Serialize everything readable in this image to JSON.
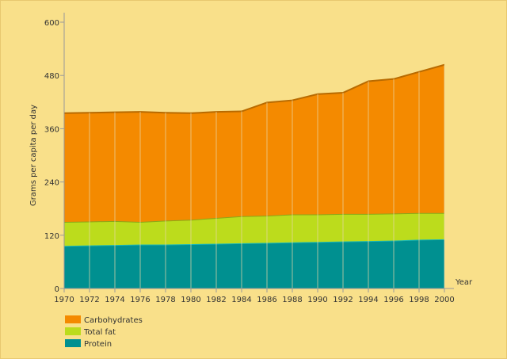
{
  "chart_data": {
    "type": "area",
    "stacked": true,
    "title": "",
    "xlabel": "Year",
    "ylabel": "Grams per capita per day",
    "ylim": [
      0,
      600
    ],
    "yticks": [
      0,
      120,
      240,
      360,
      480,
      600
    ],
    "x": [
      1970,
      1972,
      1974,
      1976,
      1978,
      1980,
      1982,
      1984,
      1986,
      1988,
      1990,
      1992,
      1994,
      1996,
      1998,
      2000
    ],
    "series": [
      {
        "name": "Protein",
        "color": "#009090",
        "values": [
          96,
          97,
          98,
          99,
          99,
          100,
          101,
          102,
          103,
          104,
          105,
          106,
          107,
          108,
          110,
          111
        ]
      },
      {
        "name": "Total fat",
        "color": "#bcdc1c",
        "values": [
          54,
          54,
          54,
          51,
          54,
          55,
          58,
          61,
          61,
          63,
          62,
          62,
          61,
          61,
          60,
          59
        ]
      },
      {
        "name": "Carbohydrates",
        "color": "#f48a00",
        "values": [
          245,
          245,
          245,
          248,
          243,
          240,
          239,
          236,
          255,
          257,
          271,
          273,
          299,
          303,
          318,
          334
        ]
      }
    ],
    "legend_position": "bottom-left",
    "legend_order": [
      "Carbohydrates",
      "Total fat",
      "Protein"
    ]
  }
}
